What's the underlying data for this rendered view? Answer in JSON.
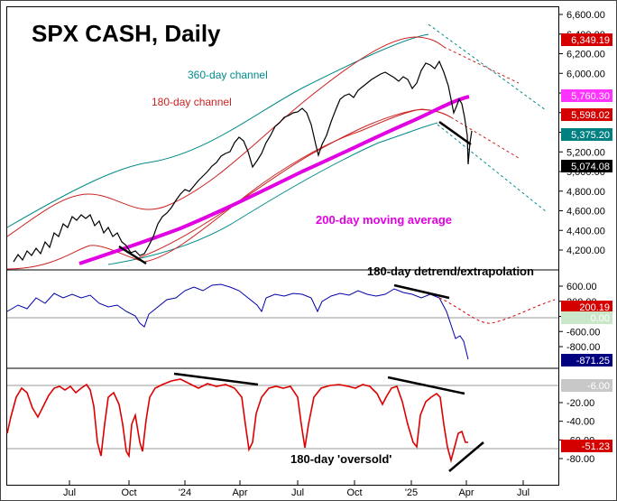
{
  "chart_data": [
    {
      "type": "line",
      "title": "SPX CASH, Daily",
      "x_ticks": [
        "Jul",
        "Oct",
        "'24",
        "Apr",
        "Jul",
        "Oct",
        "'25",
        "Apr",
        "Jul"
      ],
      "y_ticks": [
        "6,600.00",
        "6,400.00",
        "6,200.00",
        "6,000.00",
        "5,800.00",
        "5,600.00",
        "5,400.00",
        "5,200.00",
        "5,000.00",
        "4,800.00",
        "4,600.00",
        "4,400.00",
        "4,200.00"
      ],
      "ylim": [
        4000,
        6600
      ],
      "series": [
        {
          "name": "SPX",
          "color": "#000000",
          "x": [
            "2023-05",
            "2023-07",
            "2023-08",
            "2023-10",
            "2023-10-27",
            "2023-12",
            "2024-01",
            "2024-03",
            "2024-04-19",
            "2024-06",
            "2024-07-16",
            "2024-08-05",
            "2024-09",
            "2024-10",
            "2024-11",
            "2024-12-06",
            "2025-01",
            "2025-02-19",
            "2025-03-13",
            "2025-03-25",
            "2025-04-04",
            "2025-04-08",
            "2025-04-11"
          ],
          "values": [
            4100,
            4400,
            4560,
            4320,
            4110,
            4560,
            4800,
            5200,
            4970,
            5460,
            5660,
            5190,
            5610,
            5850,
            5940,
            6090,
            5830,
            6140,
            5520,
            5770,
            5070,
            4980,
            5360
          ]
        },
        {
          "name": "200-day moving average",
          "color": "#e100e1",
          "x": [
            "2023-05",
            "2023-10",
            "2024-01",
            "2024-04",
            "2024-07",
            "2024-10",
            "2025-01",
            "2025-03",
            "2025-04"
          ],
          "values": [
            4050,
            4250,
            4420,
            4800,
            5100,
            5360,
            5620,
            5740,
            5760
          ]
        },
        {
          "name": "360-day channel",
          "color": "#008a8a",
          "x": [
            "2023-05",
            "2023-08",
            "2024-01",
            "2024-07",
            "2024-12",
            "2025-01"
          ],
          "values": [
            4500,
            4750,
            5250,
            5900,
            6400,
            6480
          ]
        },
        {
          "name": "180-day channel",
          "color": "#cc0000",
          "x": [
            "2023-05",
            "2023-08",
            "2024-01",
            "2024-07",
            "2024-12",
            "2025-01"
          ],
          "values": [
            4400,
            4700,
            5130,
            5700,
            6350,
            6340
          ]
        }
      ],
      "value_badges": [
        {
          "label": "6,349.19",
          "bg": "#d40000",
          "fg": "#ffffff"
        },
        {
          "label": "5,760.30",
          "bg": "#ff33ff",
          "fg": "#ffffff"
        },
        {
          "label": "5,598.02",
          "bg": "#d40000",
          "fg": "#ffffff"
        },
        {
          "label": "5,375.20",
          "bg": "#008080",
          "fg": "#ffffff"
        },
        {
          "label": "5,074.08",
          "bg": "#000000",
          "fg": "#ffffff"
        }
      ],
      "annotations": [
        "360-day channel",
        "180-day channel",
        "200-day moving average"
      ]
    },
    {
      "type": "line",
      "title": "180-day detrend/extrapolation",
      "y_ticks": [
        "600.00",
        "200.00",
        "-200.00",
        "-600.00",
        "-800.00"
      ],
      "ylim": [
        -1000,
        800
      ],
      "series": [
        {
          "name": "detrend",
          "color": "#000080",
          "x": [
            "2023-05",
            "2023-08",
            "2023-10",
            "2024-01",
            "2024-04",
            "2024-07",
            "2024-10",
            "2025-01",
            "2025-02",
            "2025-03",
            "2025-04"
          ],
          "values": [
            0,
            250,
            -100,
            300,
            380,
            150,
            300,
            200,
            250,
            -200,
            -871
          ]
        }
      ],
      "value_badges": [
        {
          "label": "200.19",
          "bg": "#d40000",
          "fg": "#ffffff"
        },
        {
          "label": "0.00",
          "bg": "#c9e8c9",
          "fg": "#ffffff"
        },
        {
          "label": "-871.25",
          "bg": "#000080",
          "fg": "#ffffff"
        }
      ]
    },
    {
      "type": "line",
      "title": "180-day 'oversold'",
      "y_ticks": [
        "-20.00",
        "-40.00",
        "-60.00",
        "-80.00"
      ],
      "ylim": [
        -90,
        5
      ],
      "series": [
        {
          "name": "oversold",
          "color": "#dd0000",
          "x": [
            "2023-05",
            "2023-07",
            "2023-09",
            "2023-10",
            "2023-12",
            "2024-04",
            "2024-05",
            "2024-08",
            "2024-09",
            "2024-12",
            "2025-01",
            "2025-02",
            "2025-03",
            "2025-04"
          ],
          "values": [
            -55,
            -8,
            -6,
            -80,
            -3,
            -5,
            -65,
            -78,
            -8,
            -3,
            -75,
            -5,
            -85,
            -51
          ]
        }
      ],
      "value_badges": [
        {
          "label": "-6.00",
          "bg": "#c8c8c8",
          "fg": "#ffffff"
        },
        {
          "label": "-51.23",
          "bg": "#d40000",
          "fg": "#ffffff"
        }
      ]
    }
  ]
}
